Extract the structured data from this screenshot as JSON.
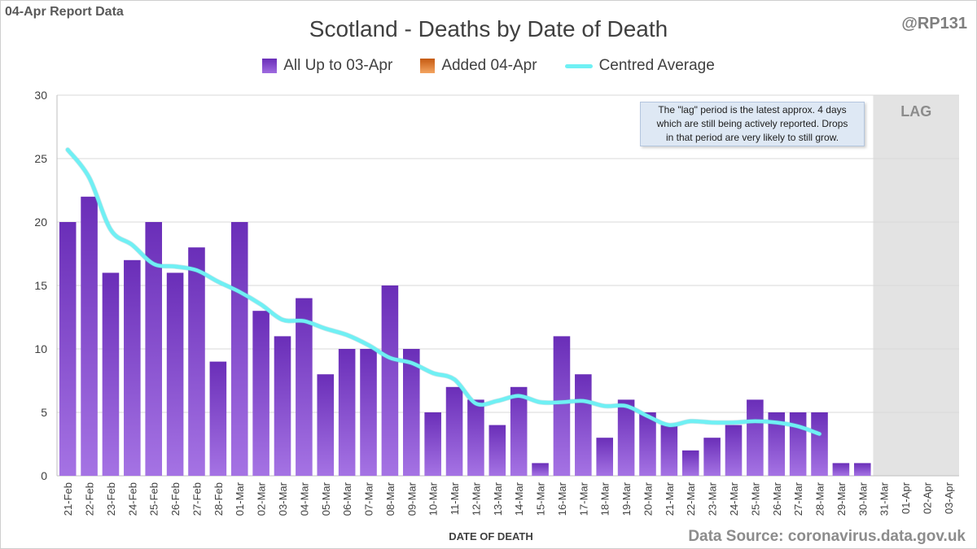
{
  "report_label": "04-Apr Report Data",
  "handle": "@RP131",
  "source": "Data Source: coronavirus.data.gov.uk",
  "colors": {
    "bar_top": "#6a2eb8",
    "bar_bottom": "#a573e4",
    "average_line": "#6ff0f4",
    "lag_shade": "#e3e3e3",
    "gridline": "#d9d9d9"
  },
  "legend": [
    {
      "label": "All Up to 03-Apr",
      "icon": "purple-bar-swatch"
    },
    {
      "label": "Added 04-Apr",
      "icon": "orange-bar-swatch"
    },
    {
      "label": "Centred Average",
      "icon": "cyan-line-swatch"
    }
  ],
  "annotation": {
    "lines": [
      "The \"lag\" period is the latest approx. 4 days",
      "which are still being actively reported.  Drops",
      "in that period are very likely to still grow."
    ],
    "lag_label": "LAG"
  },
  "chart_data": {
    "type": "bar",
    "title": "Scotland - Deaths by Date of Death",
    "xlabel": "DATE OF DEATH",
    "ylabel": "",
    "ylim": [
      0,
      30
    ],
    "yticks": [
      0,
      5,
      10,
      15,
      20,
      25,
      30
    ],
    "grid": true,
    "legend_position": "top-center",
    "categories": [
      "21-Feb",
      "22-Feb",
      "23-Feb",
      "24-Feb",
      "25-Feb",
      "26-Feb",
      "27-Feb",
      "28-Feb",
      "01-Mar",
      "02-Mar",
      "03-Mar",
      "04-Mar",
      "05-Mar",
      "06-Mar",
      "07-Mar",
      "08-Mar",
      "09-Mar",
      "10-Mar",
      "11-Mar",
      "12-Mar",
      "13-Mar",
      "14-Mar",
      "15-Mar",
      "16-Mar",
      "17-Mar",
      "18-Mar",
      "19-Mar",
      "20-Mar",
      "21-Mar",
      "22-Mar",
      "23-Mar",
      "24-Mar",
      "25-Mar",
      "26-Mar",
      "27-Mar",
      "28-Mar",
      "29-Mar",
      "30-Mar",
      "31-Mar",
      "01-Apr",
      "02-Apr",
      "03-Apr"
    ],
    "lag_categories": [
      "31-Mar",
      "01-Apr",
      "02-Apr",
      "03-Apr"
    ],
    "series": [
      {
        "name": "All Up to 03-Apr",
        "type": "bar",
        "values": [
          20,
          22,
          16,
          17,
          20,
          16,
          18,
          9,
          20,
          13,
          11,
          14,
          8,
          10,
          10,
          15,
          10,
          5,
          7,
          6,
          4,
          7,
          1,
          11,
          8,
          3,
          6,
          5,
          4,
          2,
          3,
          4,
          6,
          5,
          5,
          5,
          1,
          1,
          0,
          0,
          0,
          0
        ]
      },
      {
        "name": "Added 04-Apr",
        "type": "bar",
        "values": [
          0,
          0,
          0,
          0,
          0,
          0,
          0,
          0,
          0,
          0,
          0,
          0,
          0,
          0,
          0,
          0,
          0,
          0,
          0,
          0,
          0,
          0,
          0,
          0,
          0,
          0,
          0,
          0,
          0,
          0,
          0,
          0,
          0,
          0,
          0,
          0,
          0,
          0,
          0,
          0,
          0,
          0
        ]
      },
      {
        "name": "Centred Average",
        "type": "line",
        "values": [
          25.7,
          23.5,
          19.4,
          18.2,
          16.7,
          16.5,
          16.2,
          15.3,
          14.5,
          13.5,
          12.3,
          12.2,
          11.6,
          11.1,
          10.3,
          9.3,
          8.9,
          8.1,
          7.6,
          5.7,
          5.9,
          6.3,
          5.8,
          5.8,
          5.9,
          5.5,
          5.5,
          4.7,
          4.0,
          4.3,
          4.2,
          4.2,
          4.3,
          4.2,
          3.9,
          3.3,
          null,
          null,
          null,
          null,
          null,
          null
        ]
      }
    ]
  }
}
